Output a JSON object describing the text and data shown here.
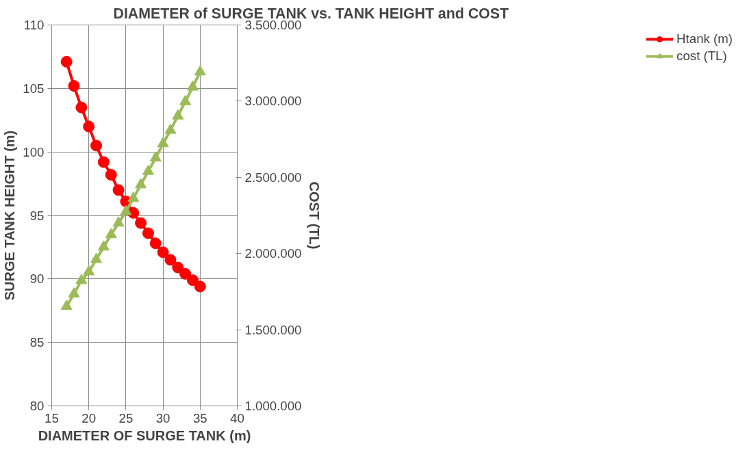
{
  "chart_data": {
    "type": "line",
    "title": "DIAMETER of SURGE TANK vs. TANK HEIGHT and COST",
    "xlabel": "DIAMETER OF SURGE TANK (m)",
    "ylabel": "SURGE TANK HEIGHT (m)",
    "y2label": "COST (TL)",
    "x": [
      17,
      18,
      19,
      20,
      21,
      22,
      23,
      24,
      25,
      26,
      27,
      28,
      29,
      30,
      31,
      32,
      33,
      34,
      35
    ],
    "series": [
      {
        "name": "Htank (m)",
        "color": "#ff0000",
        "marker": "circle",
        "values": [
          107.1,
          105.2,
          103.5,
          102.0,
          100.5,
          99.2,
          98.2,
          97.0,
          96.1,
          95.2,
          94.4,
          93.6,
          92.8,
          92.1,
          91.5,
          90.9,
          90.4,
          89.9,
          89.4
        ]
      },
      {
        "name": "cost (TL)",
        "color": "#9bbb59",
        "marker": "triangle",
        "axis": "y2",
        "values": [
          1653000,
          1735000,
          1823000,
          1880000,
          1961000,
          2043000,
          2124000,
          2200000,
          2275000,
          2363000,
          2451000,
          2539000,
          2627000,
          2721000,
          2809000,
          2903000,
          2997000,
          3092000,
          3192000
        ]
      }
    ],
    "xlim": [
      15,
      40
    ],
    "xticks": [
      15,
      20,
      25,
      30,
      35,
      40
    ],
    "ylim": [
      80,
      110
    ],
    "yticks": [
      80,
      85,
      90,
      95,
      100,
      105,
      110
    ],
    "y2lim": [
      1000000,
      3500000
    ],
    "y2ticks": [
      {
        "value": 1000000,
        "label": "1.000.000"
      },
      {
        "value": 1500000,
        "label": "1.500.000"
      },
      {
        "value": 2000000,
        "label": "2.000.000"
      },
      {
        "value": 2500000,
        "label": "2.500.000"
      },
      {
        "value": 3000000,
        "label": "3.000.000"
      },
      {
        "value": 3500000,
        "label": "3.500.000"
      }
    ],
    "grid": true,
    "legend": "right",
    "line_style": "solid"
  }
}
